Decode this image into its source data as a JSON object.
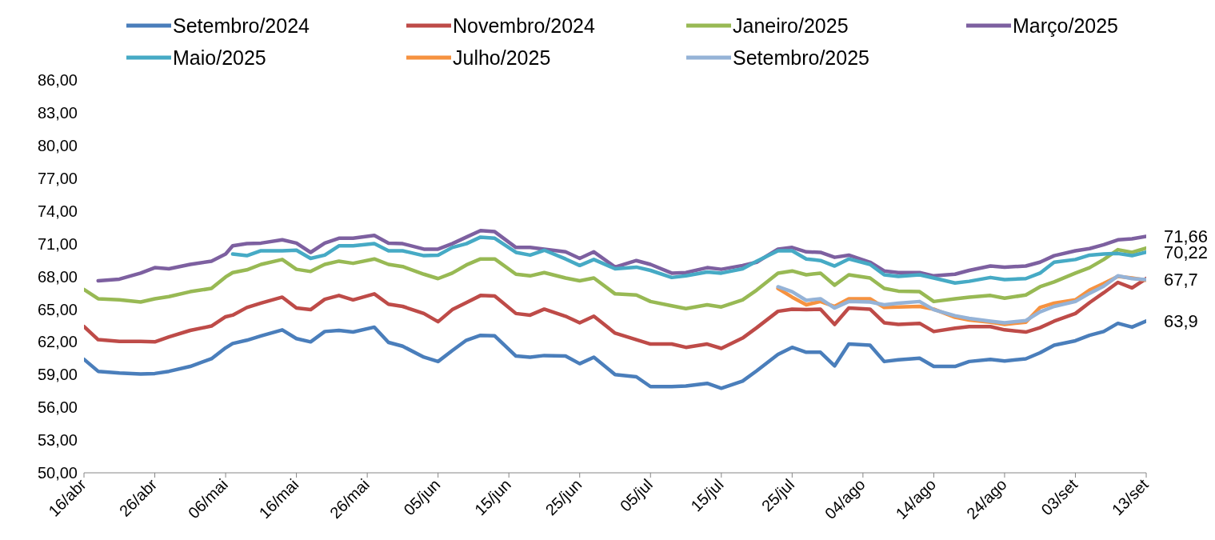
{
  "chart_data": {
    "type": "line",
    "x": [
      "--04-16",
      "--04-18",
      "--04-21",
      "--04-24",
      "--04-26",
      "--04-28",
      "--05-01",
      "--05-04",
      "--05-06",
      "--05-07",
      "--05-09",
      "--05-11",
      "--05-14",
      "--05-16",
      "--05-18",
      "--05-20",
      "--05-22",
      "--05-24",
      "--05-27",
      "--05-29",
      "--05-31",
      "--06-03",
      "--06-05",
      "--06-07",
      "--06-09",
      "--06-11",
      "--06-13",
      "--06-16",
      "--06-18",
      "--06-20",
      "--06-23",
      "--06-25",
      "--06-27",
      "--06-30",
      "--07-03",
      "--07-05",
      "--07-08",
      "--07-10",
      "--07-13",
      "--07-15",
      "--07-18",
      "--07-20",
      "--07-23",
      "--07-25",
      "--07-27",
      "--07-29",
      "--07-31",
      "--08-02",
      "--08-05",
      "--08-07",
      "--08-09",
      "--08-12",
      "--08-14",
      "--08-17",
      "--08-19",
      "--08-22",
      "--08-24",
      "--08-27",
      "--08-29",
      "--08-31",
      "--09-03",
      "--09-05",
      "--09-07",
      "--09-09",
      "--09-11",
      "--09-13"
    ],
    "series": [
      {
        "name": "Setembro/2024",
        "color": "#4a7ebb",
        "values": [
          60.4,
          59.3,
          59.15,
          59.05,
          59.1,
          59.3,
          59.75,
          60.45,
          61.45,
          61.85,
          62.15,
          62.55,
          63.1,
          62.3,
          62.0,
          62.95,
          63.05,
          62.9,
          63.35,
          61.95,
          61.6,
          60.6,
          60.2,
          61.2,
          62.15,
          62.6,
          62.55,
          60.7,
          60.6,
          60.75,
          60.7,
          60.0,
          60.6,
          59.0,
          58.8,
          57.9,
          57.9,
          57.95,
          58.2,
          57.75,
          58.4,
          59.35,
          60.85,
          61.5,
          61.05,
          61.05,
          59.8,
          61.8,
          61.7,
          60.2,
          60.35,
          60.5,
          59.75,
          59.75,
          60.2,
          60.4,
          60.25,
          60.45,
          61.0,
          61.7,
          62.1,
          62.6,
          62.95,
          63.7,
          63.35,
          63.9
        ]
      },
      {
        "name": "Novembro/2024",
        "color": "#be4b48",
        "values": [
          63.4,
          62.2,
          62.05,
          62.05,
          62.0,
          62.45,
          63.05,
          63.45,
          64.3,
          64.45,
          65.15,
          65.55,
          66.1,
          65.1,
          64.95,
          65.9,
          66.25,
          65.85,
          66.4,
          65.45,
          65.25,
          64.6,
          63.85,
          64.95,
          65.6,
          66.25,
          66.2,
          64.6,
          64.45,
          65.0,
          64.35,
          63.75,
          64.35,
          62.8,
          62.2,
          61.8,
          61.8,
          61.5,
          61.8,
          61.4,
          62.35,
          63.3,
          64.8,
          65.0,
          64.95,
          65.0,
          63.6,
          65.1,
          65.0,
          63.75,
          63.6,
          63.7,
          62.95,
          63.25,
          63.4,
          63.4,
          63.1,
          62.9,
          63.3,
          63.9,
          64.6,
          65.6,
          66.5,
          67.45,
          66.95,
          67.8
        ]
      },
      {
        "name": "Janeiro/2025",
        "color": "#98b954",
        "values": [
          66.8,
          65.95,
          65.85,
          65.65,
          65.95,
          66.15,
          66.6,
          66.9,
          67.95,
          68.35,
          68.6,
          69.1,
          69.55,
          68.65,
          68.45,
          69.1,
          69.4,
          69.2,
          69.6,
          69.1,
          68.9,
          68.2,
          67.8,
          68.3,
          69.05,
          69.6,
          69.6,
          68.2,
          68.05,
          68.35,
          67.85,
          67.6,
          67.85,
          66.4,
          66.3,
          65.7,
          65.3,
          65.05,
          65.4,
          65.2,
          65.85,
          66.75,
          68.3,
          68.5,
          68.15,
          68.3,
          67.2,
          68.15,
          67.85,
          66.9,
          66.65,
          66.6,
          65.7,
          65.95,
          66.1,
          66.25,
          66.0,
          66.3,
          67.05,
          67.5,
          68.3,
          68.8,
          69.55,
          70.45,
          70.2,
          70.6
        ]
      },
      {
        "name": "Março/2025",
        "color": "#7d60a0",
        "values": [
          null,
          67.6,
          67.75,
          68.3,
          68.8,
          68.7,
          69.1,
          69.4,
          70.05,
          70.8,
          71.0,
          71.05,
          71.35,
          71.05,
          70.2,
          71.05,
          71.5,
          71.5,
          71.75,
          71.05,
          71.0,
          70.5,
          70.5,
          71.0,
          71.6,
          72.2,
          72.1,
          70.65,
          70.65,
          70.5,
          70.25,
          69.65,
          70.25,
          68.85,
          69.45,
          69.1,
          68.3,
          68.35,
          68.8,
          68.65,
          69.0,
          69.3,
          70.5,
          70.65,
          70.25,
          70.2,
          69.75,
          69.95,
          69.3,
          68.5,
          68.35,
          68.35,
          68.05,
          68.2,
          68.55,
          68.95,
          68.85,
          68.95,
          69.3,
          69.9,
          70.35,
          70.55,
          70.9,
          71.35,
          71.45,
          71.66
        ]
      },
      {
        "name": "Maio/2025",
        "color": "#46aac5",
        "values": [
          null,
          null,
          null,
          null,
          null,
          null,
          null,
          null,
          null,
          70.05,
          69.9,
          70.35,
          70.35,
          70.4,
          69.65,
          69.95,
          70.8,
          70.8,
          71.0,
          70.35,
          70.35,
          69.9,
          69.95,
          70.65,
          71.0,
          71.6,
          71.5,
          70.2,
          69.95,
          70.4,
          69.6,
          69.0,
          69.55,
          68.7,
          68.85,
          68.55,
          67.9,
          68.05,
          68.4,
          68.3,
          68.7,
          69.4,
          70.35,
          70.35,
          69.6,
          69.45,
          68.95,
          69.6,
          69.1,
          68.15,
          68.0,
          68.15,
          67.85,
          67.4,
          67.55,
          67.9,
          67.7,
          67.8,
          68.3,
          69.3,
          69.55,
          69.95,
          70.05,
          70.1,
          69.9,
          70.22
        ]
      },
      {
        "name": "Julho/2025",
        "color": "#f69240",
        "values": [
          null,
          null,
          null,
          null,
          null,
          null,
          null,
          null,
          null,
          null,
          null,
          null,
          null,
          null,
          null,
          null,
          null,
          null,
          null,
          null,
          null,
          null,
          null,
          null,
          null,
          null,
          null,
          null,
          null,
          null,
          null,
          null,
          null,
          null,
          null,
          null,
          null,
          null,
          null,
          null,
          null,
          null,
          66.9,
          66.1,
          65.4,
          65.7,
          65.25,
          65.95,
          65.95,
          65.15,
          65.2,
          65.25,
          65.0,
          64.25,
          64.0,
          63.8,
          63.6,
          63.8,
          65.15,
          65.55,
          65.85,
          66.75,
          67.35,
          68.0,
          67.85,
          67.65
        ]
      },
      {
        "name": "Setembro/2025",
        "color": "#95b3d7",
        "values": [
          null,
          null,
          null,
          null,
          null,
          null,
          null,
          null,
          null,
          null,
          null,
          null,
          null,
          null,
          null,
          null,
          null,
          null,
          null,
          null,
          null,
          null,
          null,
          null,
          null,
          null,
          null,
          null,
          null,
          null,
          null,
          null,
          null,
          null,
          null,
          null,
          null,
          null,
          null,
          null,
          null,
          null,
          67.05,
          66.6,
          65.8,
          65.95,
          65.1,
          65.7,
          65.65,
          65.4,
          65.55,
          65.7,
          64.95,
          64.4,
          64.15,
          63.9,
          63.75,
          63.95,
          64.75,
          65.25,
          65.7,
          66.45,
          67.1,
          68.05,
          67.8,
          67.7
        ]
      }
    ],
    "xlim": [
      "--04-16",
      "--09-13"
    ],
    "xticks": [
      {
        "value": "--04-16",
        "label": "16/abr"
      },
      {
        "value": "--04-26",
        "label": "26/abr"
      },
      {
        "value": "--05-06",
        "label": "06/mai"
      },
      {
        "value": "--05-16",
        "label": "16/mai"
      },
      {
        "value": "--05-26",
        "label": "26/mai"
      },
      {
        "value": "--06-05",
        "label": "05/jun"
      },
      {
        "value": "--06-15",
        "label": "15/jun"
      },
      {
        "value": "--06-25",
        "label": "25/jun"
      },
      {
        "value": "--07-05",
        "label": "05/jul"
      },
      {
        "value": "--07-15",
        "label": "15/jul"
      },
      {
        "value": "--07-25",
        "label": "25/jul"
      },
      {
        "value": "--08-04",
        "label": "04/ago"
      },
      {
        "value": "--08-14",
        "label": "14/ago"
      },
      {
        "value": "--08-24",
        "label": "24/ago"
      },
      {
        "value": "--09-03",
        "label": "03/set"
      },
      {
        "value": "--09-13",
        "label": "13/set"
      }
    ],
    "ylim": [
      50,
      86
    ],
    "yticks": [
      {
        "value": 50,
        "label": "50,00"
      },
      {
        "value": 53,
        "label": "53,00"
      },
      {
        "value": 56,
        "label": "56,00"
      },
      {
        "value": 59,
        "label": "59,00"
      },
      {
        "value": 62,
        "label": "62,00"
      },
      {
        "value": 65,
        "label": "65,00"
      },
      {
        "value": 68,
        "label": "68,00"
      },
      {
        "value": 71,
        "label": "71,00"
      },
      {
        "value": 74,
        "label": "74,00"
      },
      {
        "value": 77,
        "label": "77,00"
      },
      {
        "value": 80,
        "label": "80,00"
      },
      {
        "value": 83,
        "label": "83,00"
      },
      {
        "value": 86,
        "label": "86,00"
      }
    ],
    "annotations": [
      {
        "text": "71,66",
        "x": "--09-13",
        "y": 71.66
      },
      {
        "text": "70,22",
        "x": "--09-13",
        "y": 70.22
      },
      {
        "text": "67,7",
        "x": "--09-13",
        "y": 67.7
      },
      {
        "text": "63,9",
        "x": "--09-13",
        "y": 63.9
      }
    ],
    "legend": "top"
  }
}
